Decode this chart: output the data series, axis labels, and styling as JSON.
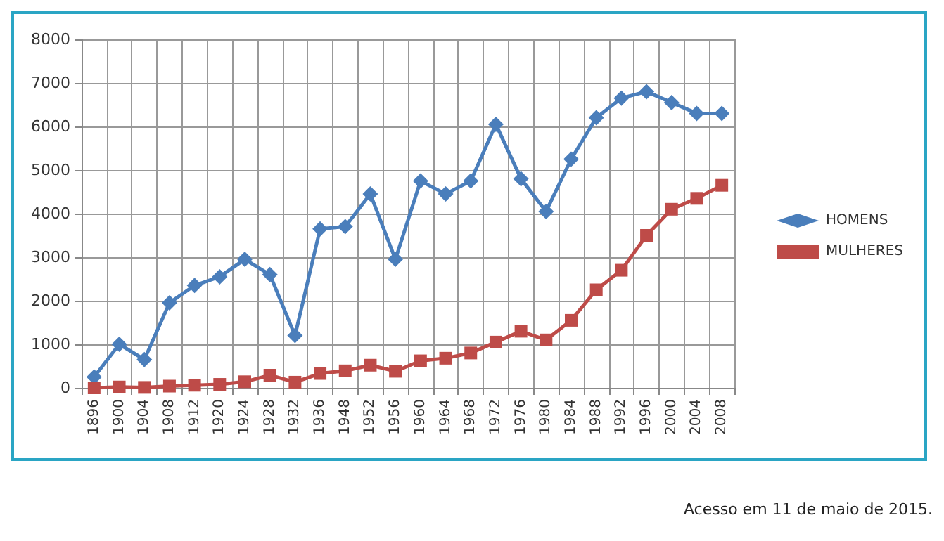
{
  "chart_data": {
    "type": "line",
    "categories": [
      "1896",
      "1900",
      "1904",
      "1908",
      "1912",
      "1920",
      "1924",
      "1928",
      "1932",
      "1936",
      "1948",
      "1952",
      "1956",
      "1960",
      "1964",
      "1968",
      "1972",
      "1976",
      "1980",
      "1984",
      "1988",
      "1992",
      "1996",
      "2000",
      "2004",
      "2008"
    ],
    "series": [
      {
        "name": "HOMENS",
        "color": "#4a7ebb",
        "marker": "diamond",
        "values": [
          250,
          1000,
          650,
          1950,
          2350,
          2550,
          2950,
          2600,
          1200,
          3650,
          3700,
          4450,
          2950,
          4750,
          4450,
          4750,
          6050,
          4800,
          4050,
          5250,
          6200,
          6650,
          6800,
          6550,
          6300,
          6300
        ]
      },
      {
        "name": "MULHERES",
        "color": "#be4b48",
        "marker": "square",
        "values": [
          0,
          20,
          10,
          40,
          60,
          80,
          140,
          290,
          130,
          330,
          390,
          520,
          380,
          620,
          680,
          800,
          1050,
          1300,
          1100,
          1550,
          2250,
          2700,
          3500,
          4100,
          4350,
          4650
        ]
      }
    ],
    "ylim": [
      0,
      8000
    ],
    "yticks": [
      0,
      1000,
      2000,
      3000,
      4000,
      5000,
      6000,
      7000,
      8000
    ],
    "grid": true,
    "legend": "right",
    "line_style": "solid",
    "annotations": [
      "Acesso em 11 de maio de 2015."
    ]
  }
}
